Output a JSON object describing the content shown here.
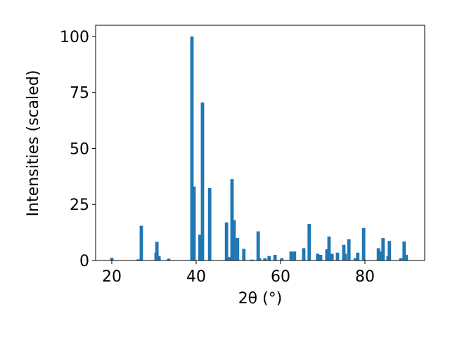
{
  "chart_data": {
    "type": "bar",
    "color": "#1f77b4",
    "bar_width": 0.8,
    "xlabel": "2θ (°)",
    "ylabel": "Intensities (scaled)",
    "x": [
      20.0,
      26.3,
      27.0,
      30.5,
      30.7,
      31.2,
      33.5,
      39.0,
      39.5,
      40.9,
      41.5,
      43.2,
      47.2,
      47.8,
      48.5,
      49.0,
      49.8,
      51.3,
      53.2,
      54.7,
      55.0,
      56.3,
      57.3,
      58.7,
      60.3,
      62.5,
      63.3,
      65.5,
      66.8,
      68.8,
      69.5,
      71.0,
      71.5,
      72.2,
      73.5,
      75.0,
      75.3,
      76.2,
      77.7,
      78.3,
      79.7,
      83.2,
      83.7,
      84.3,
      85.5,
      85.8,
      88.5,
      89.3,
      89.8
    ],
    "values": [
      1.2,
      0.5,
      15.5,
      3.5,
      8.3,
      2,
      0.8,
      100,
      33,
      11.5,
      70.5,
      32.3,
      17,
      1.5,
      36.3,
      18,
      10,
      5.2,
      0.4,
      13,
      1,
      1,
      2,
      2.5,
      1,
      4,
      4,
      5.5,
      16.3,
      3,
      2.5,
      5,
      10.7,
      3,
      3.5,
      7,
      3,
      9.5,
      1,
      3.5,
      14.5,
      5.5,
      4,
      10,
      2,
      8.7,
      1,
      8.5,
      2.5
    ],
    "xlim": [
      16.17,
      94.17
    ],
    "ylim": [
      0,
      105
    ],
    "xticks": [
      20,
      40,
      60,
      80
    ],
    "yticks": [
      0,
      25,
      50,
      75,
      100
    ]
  }
}
